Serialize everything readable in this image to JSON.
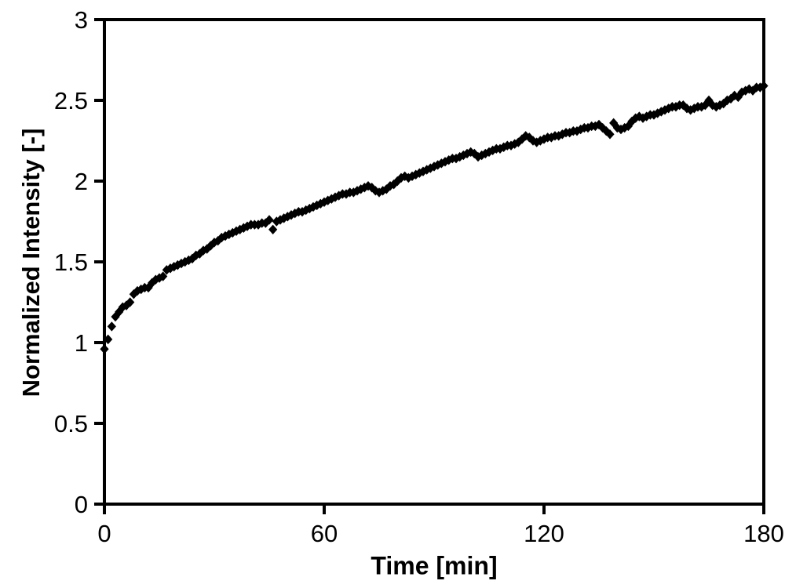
{
  "figure": {
    "background": "#ffffff",
    "axis_color": "#000000",
    "marker_color": "#000000"
  },
  "chart_data": {
    "type": "scatter",
    "title": "",
    "xlabel": "Time [min]",
    "ylabel": "Normalized Intensity [-]",
    "xlim": [
      0,
      180
    ],
    "ylim": [
      0,
      3
    ],
    "xticks": {
      "values": [
        0,
        60,
        120,
        180
      ],
      "labels": [
        "0",
        "60",
        "120",
        "180"
      ]
    },
    "yticks": {
      "values": [
        0,
        0.5,
        1,
        1.5,
        2,
        2.5,
        3
      ],
      "labels": [
        "0",
        "0.5",
        "1",
        "1.5",
        "2",
        "2.5",
        "3"
      ]
    },
    "grid": false,
    "legend": null,
    "marker": "diamond",
    "series": [
      {
        "name": "normalized-intensity",
        "points": [
          [
            0,
            0.96
          ],
          [
            1,
            1.02
          ],
          [
            2,
            1.1
          ],
          [
            3,
            1.16
          ],
          [
            4,
            1.19
          ],
          [
            5,
            1.22
          ],
          [
            6,
            1.23
          ],
          [
            7,
            1.25
          ],
          [
            8,
            1.3
          ],
          [
            9,
            1.32
          ],
          [
            10,
            1.33
          ],
          [
            11,
            1.34
          ],
          [
            12,
            1.34
          ],
          [
            13,
            1.37
          ],
          [
            14,
            1.39
          ],
          [
            15,
            1.4
          ],
          [
            16,
            1.41
          ],
          [
            17,
            1.45
          ],
          [
            18,
            1.46
          ],
          [
            19,
            1.47
          ],
          [
            20,
            1.48
          ],
          [
            21,
            1.49
          ],
          [
            22,
            1.5
          ],
          [
            23,
            1.51
          ],
          [
            24,
            1.52
          ],
          [
            25,
            1.54
          ],
          [
            26,
            1.55
          ],
          [
            27,
            1.57
          ],
          [
            28,
            1.58
          ],
          [
            29,
            1.6
          ],
          [
            30,
            1.62
          ],
          [
            31,
            1.63
          ],
          [
            32,
            1.65
          ],
          [
            33,
            1.66
          ],
          [
            34,
            1.67
          ],
          [
            35,
            1.68
          ],
          [
            36,
            1.69
          ],
          [
            37,
            1.7
          ],
          [
            38,
            1.71
          ],
          [
            39,
            1.72
          ],
          [
            40,
            1.73
          ],
          [
            41,
            1.73
          ],
          [
            42,
            1.73
          ],
          [
            43,
            1.74
          ],
          [
            44,
            1.74
          ],
          [
            45,
            1.76
          ],
          [
            46,
            1.7
          ],
          [
            47,
            1.75
          ],
          [
            48,
            1.76
          ],
          [
            49,
            1.77
          ],
          [
            50,
            1.78
          ],
          [
            51,
            1.79
          ],
          [
            52,
            1.8
          ],
          [
            53,
            1.81
          ],
          [
            54,
            1.81
          ],
          [
            55,
            1.82
          ],
          [
            56,
            1.83
          ],
          [
            57,
            1.84
          ],
          [
            58,
            1.85
          ],
          [
            59,
            1.86
          ],
          [
            60,
            1.87
          ],
          [
            61,
            1.88
          ],
          [
            62,
            1.89
          ],
          [
            63,
            1.9
          ],
          [
            64,
            1.91
          ],
          [
            65,
            1.92
          ],
          [
            66,
            1.92
          ],
          [
            67,
            1.93
          ],
          [
            68,
            1.93
          ],
          [
            69,
            1.94
          ],
          [
            70,
            1.95
          ],
          [
            71,
            1.96
          ],
          [
            72,
            1.97
          ],
          [
            73,
            1.96
          ],
          [
            74,
            1.94
          ],
          [
            75,
            1.93
          ],
          [
            76,
            1.94
          ],
          [
            77,
            1.95
          ],
          [
            78,
            1.97
          ],
          [
            79,
            1.98
          ],
          [
            80,
            2.0
          ],
          [
            81,
            2.02
          ],
          [
            82,
            2.03
          ],
          [
            83,
            2.02
          ],
          [
            84,
            2.03
          ],
          [
            85,
            2.04
          ],
          [
            86,
            2.05
          ],
          [
            87,
            2.06
          ],
          [
            88,
            2.07
          ],
          [
            89,
            2.08
          ],
          [
            90,
            2.09
          ],
          [
            91,
            2.1
          ],
          [
            92,
            2.11
          ],
          [
            93,
            2.12
          ],
          [
            94,
            2.13
          ],
          [
            95,
            2.14
          ],
          [
            96,
            2.14
          ],
          [
            97,
            2.15
          ],
          [
            98,
            2.16
          ],
          [
            99,
            2.17
          ],
          [
            100,
            2.18
          ],
          [
            101,
            2.17
          ],
          [
            102,
            2.15
          ],
          [
            103,
            2.16
          ],
          [
            104,
            2.17
          ],
          [
            105,
            2.18
          ],
          [
            106,
            2.19
          ],
          [
            107,
            2.2
          ],
          [
            108,
            2.2
          ],
          [
            109,
            2.21
          ],
          [
            110,
            2.22
          ],
          [
            111,
            2.22
          ],
          [
            112,
            2.23
          ],
          [
            113,
            2.24
          ],
          [
            114,
            2.26
          ],
          [
            115,
            2.28
          ],
          [
            116,
            2.27
          ],
          [
            117,
            2.25
          ],
          [
            118,
            2.24
          ],
          [
            119,
            2.25
          ],
          [
            120,
            2.26
          ],
          [
            121,
            2.27
          ],
          [
            122,
            2.27
          ],
          [
            123,
            2.28
          ],
          [
            124,
            2.28
          ],
          [
            125,
            2.29
          ],
          [
            126,
            2.3
          ],
          [
            127,
            2.3
          ],
          [
            128,
            2.31
          ],
          [
            129,
            2.31
          ],
          [
            130,
            2.32
          ],
          [
            131,
            2.33
          ],
          [
            132,
            2.33
          ],
          [
            133,
            2.34
          ],
          [
            134,
            2.34
          ],
          [
            135,
            2.35
          ],
          [
            136,
            2.33
          ],
          [
            137,
            2.31
          ],
          [
            138,
            2.29
          ],
          [
            139,
            2.36
          ],
          [
            140,
            2.33
          ],
          [
            141,
            2.32
          ],
          [
            142,
            2.33
          ],
          [
            143,
            2.34
          ],
          [
            144,
            2.37
          ],
          [
            145,
            2.39
          ],
          [
            146,
            2.4
          ],
          [
            147,
            2.39
          ],
          [
            148,
            2.4
          ],
          [
            149,
            2.41
          ],
          [
            150,
            2.41
          ],
          [
            151,
            2.42
          ],
          [
            152,
            2.43
          ],
          [
            153,
            2.44
          ],
          [
            154,
            2.45
          ],
          [
            155,
            2.46
          ],
          [
            156,
            2.46
          ],
          [
            157,
            2.47
          ],
          [
            158,
            2.47
          ],
          [
            159,
            2.45
          ],
          [
            160,
            2.44
          ],
          [
            161,
            2.45
          ],
          [
            162,
            2.46
          ],
          [
            163,
            2.46
          ],
          [
            164,
            2.47
          ],
          [
            165,
            2.5
          ],
          [
            166,
            2.47
          ],
          [
            167,
            2.46
          ],
          [
            168,
            2.47
          ],
          [
            169,
            2.48
          ],
          [
            170,
            2.5
          ],
          [
            171,
            2.51
          ],
          [
            172,
            2.53
          ],
          [
            173,
            2.52
          ],
          [
            174,
            2.55
          ],
          [
            175,
            2.56
          ],
          [
            176,
            2.57
          ],
          [
            177,
            2.56
          ],
          [
            178,
            2.58
          ],
          [
            179,
            2.58
          ],
          [
            180,
            2.59
          ]
        ]
      }
    ]
  }
}
